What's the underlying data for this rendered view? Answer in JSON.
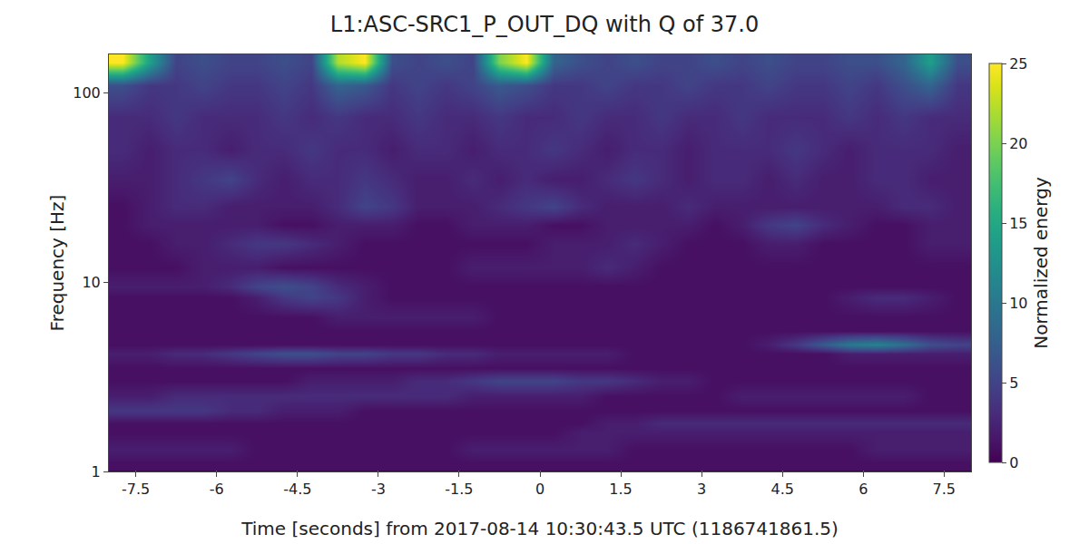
{
  "chart_data": {
    "type": "heatmap",
    "title": "L1:ASC-SRC1_P_OUT_DQ with Q of 37.0",
    "x_label": "Time [seconds] from 2017-08-14 10:30:43.5 UTC (1186741861.5)",
    "y_label": "Frequency [Hz]",
    "log": "y",
    "grid": true,
    "xlim": [
      -8,
      8
    ],
    "xticks": [
      -7.5,
      -6,
      -4.5,
      -3,
      -1.5,
      0,
      1.5,
      3,
      4.5,
      6,
      7.5
    ],
    "ylim": [
      1,
      160
    ],
    "yticks": [
      1,
      10,
      100
    ],
    "colorbar_label": "Normalized energy",
    "zlim": [
      0,
      25
    ],
    "zticks": [
      0,
      5,
      10,
      15,
      20,
      25
    ],
    "x": [
      -7.75,
      -7.25,
      -6.75,
      -6.25,
      -5.75,
      -5.25,
      -4.75,
      -4.25,
      -3.75,
      -3.25,
      -2.75,
      -2.25,
      -1.75,
      -1.25,
      -0.75,
      -0.25,
      0.25,
      0.75,
      1.25,
      1.75,
      2.25,
      2.75,
      3.25,
      3.75,
      4.25,
      4.75,
      5.25,
      5.75,
      6.25,
      6.75,
      7.25,
      7.75
    ],
    "y": [
      1.1,
      1.3,
      1.6,
      1.8,
      2.1,
      2.5,
      3.0,
      3.5,
      4.2,
      4.7,
      5.5,
      6.5,
      8.3,
      9.5,
      12,
      16,
      20,
      25,
      35,
      50,
      75,
      110,
      145
    ],
    "cells": [
      [
        1,
        1,
        1,
        1,
        1,
        1,
        1,
        1,
        1,
        1,
        1,
        1,
        1,
        1,
        1,
        1,
        1,
        1,
        1,
        1,
        1,
        1,
        1,
        1,
        1,
        1,
        1,
        1,
        1,
        1,
        1,
        1
      ],
      [
        2,
        2,
        2,
        2,
        2,
        1,
        1,
        1,
        1,
        1,
        1,
        1,
        1,
        2,
        2,
        2,
        2,
        2,
        2,
        1,
        1,
        1,
        1,
        1,
        1,
        1,
        1,
        1,
        2,
        2,
        2,
        2
      ],
      [
        1,
        1,
        1,
        1,
        1,
        1,
        1,
        1,
        1,
        1,
        1,
        1,
        1,
        1,
        1,
        1,
        1,
        2,
        2,
        2,
        2,
        2,
        2,
        2,
        2,
        2,
        2,
        2,
        2,
        2,
        2,
        2
      ],
      [
        1,
        1,
        1,
        1,
        1,
        1,
        1,
        1,
        1,
        1,
        1,
        1,
        1,
        1,
        1,
        1,
        1,
        1,
        2,
        2,
        3,
        3,
        3,
        3,
        3,
        3,
        3,
        3,
        3,
        3,
        3,
        3
      ],
      [
        4,
        4,
        4,
        4,
        3,
        3,
        2,
        2,
        2,
        1,
        1,
        1,
        1,
        1,
        1,
        1,
        1,
        1,
        1,
        1,
        1,
        1,
        1,
        1,
        1,
        1,
        1,
        1,
        1,
        1,
        1,
        1
      ],
      [
        2,
        2,
        3,
        3,
        3,
        3,
        3,
        3,
        3,
        3,
        3,
        3,
        3,
        2,
        2,
        2,
        2,
        2,
        1,
        1,
        1,
        1,
        1,
        2,
        2,
        2,
        2,
        2,
        2,
        2,
        1,
        1
      ],
      [
        1,
        1,
        1,
        1,
        1,
        1,
        1,
        2,
        2,
        2,
        2,
        3,
        3,
        4,
        5,
        5,
        5,
        4,
        4,
        3,
        2,
        2,
        1,
        1,
        1,
        1,
        1,
        1,
        1,
        1,
        1,
        1
      ],
      [
        1,
        1,
        1,
        1,
        1,
        1,
        1,
        1,
        1,
        1,
        1,
        1,
        1,
        1,
        1,
        1,
        1,
        1,
        1,
        1,
        1,
        1,
        1,
        1,
        1,
        1,
        1,
        1,
        1,
        1,
        1,
        1
      ],
      [
        2,
        2,
        3,
        3,
        4,
        5,
        6,
        6,
        5,
        5,
        4,
        4,
        3,
        3,
        2,
        2,
        2,
        2,
        2,
        1,
        1,
        1,
        1,
        1,
        1,
        1,
        1,
        2,
        2,
        2,
        2,
        2
      ],
      [
        1,
        1,
        1,
        1,
        1,
        1,
        1,
        1,
        1,
        1,
        1,
        1,
        1,
        1,
        1,
        1,
        1,
        1,
        1,
        1,
        1,
        1,
        1,
        1,
        2,
        4,
        7,
        10,
        11,
        9,
        6,
        5
      ],
      [
        1,
        1,
        1,
        1,
        1,
        1,
        1,
        1,
        1,
        1,
        1,
        1,
        1,
        1,
        1,
        1,
        1,
        1,
        1,
        1,
        1,
        1,
        1,
        1,
        1,
        1,
        1,
        1,
        1,
        1,
        1,
        1
      ],
      [
        1,
        1,
        1,
        1,
        1,
        1,
        1,
        1,
        2,
        2,
        2,
        2,
        2,
        2,
        1,
        1,
        1,
        1,
        1,
        1,
        1,
        1,
        1,
        1,
        1,
        1,
        1,
        1,
        1,
        1,
        1,
        1
      ],
      [
        1,
        1,
        1,
        1,
        1,
        2,
        4,
        5,
        4,
        2,
        1,
        1,
        1,
        1,
        1,
        1,
        1,
        1,
        1,
        1,
        1,
        1,
        1,
        1,
        1,
        1,
        1,
        2,
        3,
        3,
        2,
        1
      ],
      [
        2,
        2,
        2,
        2,
        3,
        5,
        6,
        5,
        3,
        2,
        1,
        1,
        1,
        1,
        1,
        1,
        1,
        1,
        1,
        1,
        1,
        1,
        1,
        1,
        1,
        1,
        1,
        1,
        1,
        1,
        1,
        1
      ],
      [
        1,
        1,
        1,
        2,
        2,
        2,
        1,
        1,
        1,
        1,
        1,
        1,
        1,
        2,
        2,
        2,
        2,
        2,
        3,
        2,
        1,
        1,
        1,
        1,
        1,
        1,
        1,
        1,
        1,
        1,
        1,
        1
      ],
      [
        1,
        1,
        2,
        2,
        3,
        4,
        4,
        3,
        2,
        1,
        1,
        1,
        1,
        1,
        1,
        1,
        2,
        2,
        2,
        3,
        2,
        1,
        1,
        1,
        2,
        2,
        1,
        1,
        1,
        1,
        2,
        2
      ],
      [
        1,
        2,
        2,
        2,
        2,
        2,
        1,
        1,
        2,
        2,
        2,
        1,
        1,
        2,
        2,
        2,
        1,
        1,
        2,
        2,
        2,
        2,
        1,
        2,
        4,
        5,
        3,
        2,
        1,
        1,
        2,
        2
      ],
      [
        1,
        2,
        3,
        3,
        2,
        2,
        2,
        2,
        3,
        5,
        4,
        2,
        2,
        2,
        3,
        4,
        5,
        3,
        2,
        2,
        2,
        3,
        2,
        2,
        2,
        2,
        2,
        2,
        2,
        3,
        3,
        2
      ],
      [
        2,
        2,
        3,
        4,
        5,
        3,
        2,
        3,
        3,
        4,
        3,
        2,
        2,
        3,
        2,
        3,
        2,
        2,
        3,
        4,
        3,
        2,
        3,
        3,
        2,
        3,
        2,
        2,
        3,
        3,
        2,
        2
      ],
      [
        3,
        2,
        3,
        3,
        2,
        3,
        3,
        4,
        3,
        3,
        2,
        3,
        3,
        2,
        3,
        3,
        4,
        3,
        2,
        3,
        3,
        2,
        3,
        3,
        3,
        4,
        3,
        2,
        3,
        3,
        3,
        2
      ],
      [
        3,
        3,
        4,
        3,
        3,
        3,
        4,
        3,
        4,
        3,
        3,
        4,
        3,
        3,
        4,
        3,
        3,
        4,
        3,
        3,
        4,
        3,
        3,
        4,
        3,
        3,
        3,
        4,
        3,
        4,
        3,
        3
      ],
      [
        6,
        4,
        4,
        5,
        4,
        4,
        5,
        4,
        8,
        7,
        4,
        5,
        4,
        5,
        7,
        6,
        4,
        4,
        5,
        4,
        4,
        5,
        4,
        4,
        5,
        4,
        4,
        5,
        4,
        6,
        8,
        4
      ],
      [
        25,
        14,
        5,
        6,
        5,
        5,
        6,
        5,
        22,
        25,
        6,
        5,
        6,
        5,
        20,
        25,
        8,
        6,
        5,
        6,
        5,
        5,
        6,
        5,
        6,
        5,
        5,
        6,
        6,
        8,
        14,
        6
      ]
    ]
  }
}
